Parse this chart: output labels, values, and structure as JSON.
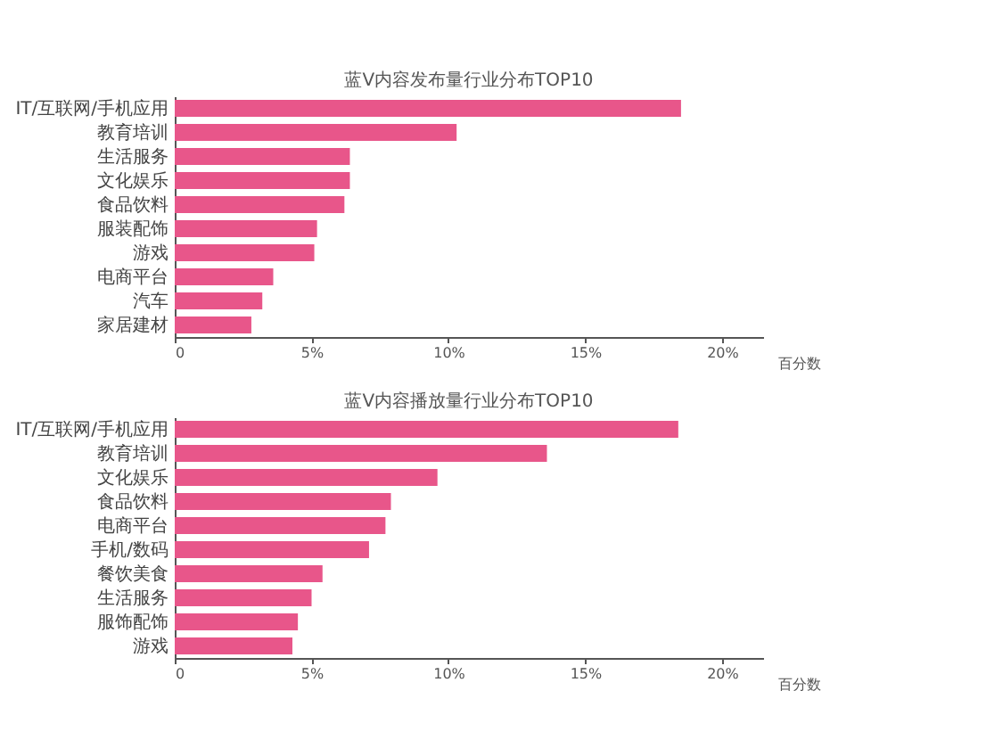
{
  "chart_data": [
    {
      "type": "bar",
      "orientation": "horizontal",
      "title": "蓝V内容发布量行业分布TOP10",
      "xlabel": "百分数",
      "categories": [
        "IT/互联网/手机应用",
        "教育培训",
        "生活服务",
        "文化娱乐",
        "食品饮料",
        "服装配饰",
        "游戏",
        "电商平台",
        "汽车",
        "家居建材"
      ],
      "series": [
        {
          "color": "#e8568a",
          "values": [
            18.5,
            10.3,
            6.4,
            6.4,
            6.2,
            5.2,
            5.1,
            3.6,
            3.2,
            2.8
          ]
        }
      ],
      "xlim": [
        0,
        21.5
      ],
      "xticks": [
        {
          "value": 0,
          "label": "0"
        },
        {
          "value": 5,
          "label": "5%"
        },
        {
          "value": 10,
          "label": "10%"
        },
        {
          "value": 15,
          "label": "15%"
        },
        {
          "value": 20,
          "label": "20%"
        }
      ],
      "grid": false,
      "legend": false
    },
    {
      "type": "bar",
      "orientation": "horizontal",
      "title": "蓝V内容播放量行业分布TOP10",
      "xlabel": "百分数",
      "categories": [
        "IT/互联网/手机应用",
        "教育培训",
        "文化娱乐",
        "食品饮料",
        "电商平台",
        "手机/数码",
        "餐饮美食",
        "生活服务",
        "服饰配饰",
        "游戏"
      ],
      "series": [
        {
          "color": "#e8568a",
          "values": [
            18.4,
            13.6,
            9.6,
            7.9,
            7.7,
            7.1,
            5.4,
            5.0,
            4.5,
            4.3
          ]
        }
      ],
      "xlim": [
        0,
        21.5
      ],
      "xticks": [
        {
          "value": 0,
          "label": "0"
        },
        {
          "value": 5,
          "label": "5%"
        },
        {
          "value": 10,
          "label": "10%"
        },
        {
          "value": 15,
          "label": "15%"
        },
        {
          "value": 20,
          "label": "20%"
        }
      ],
      "grid": false,
      "legend": false
    }
  ]
}
